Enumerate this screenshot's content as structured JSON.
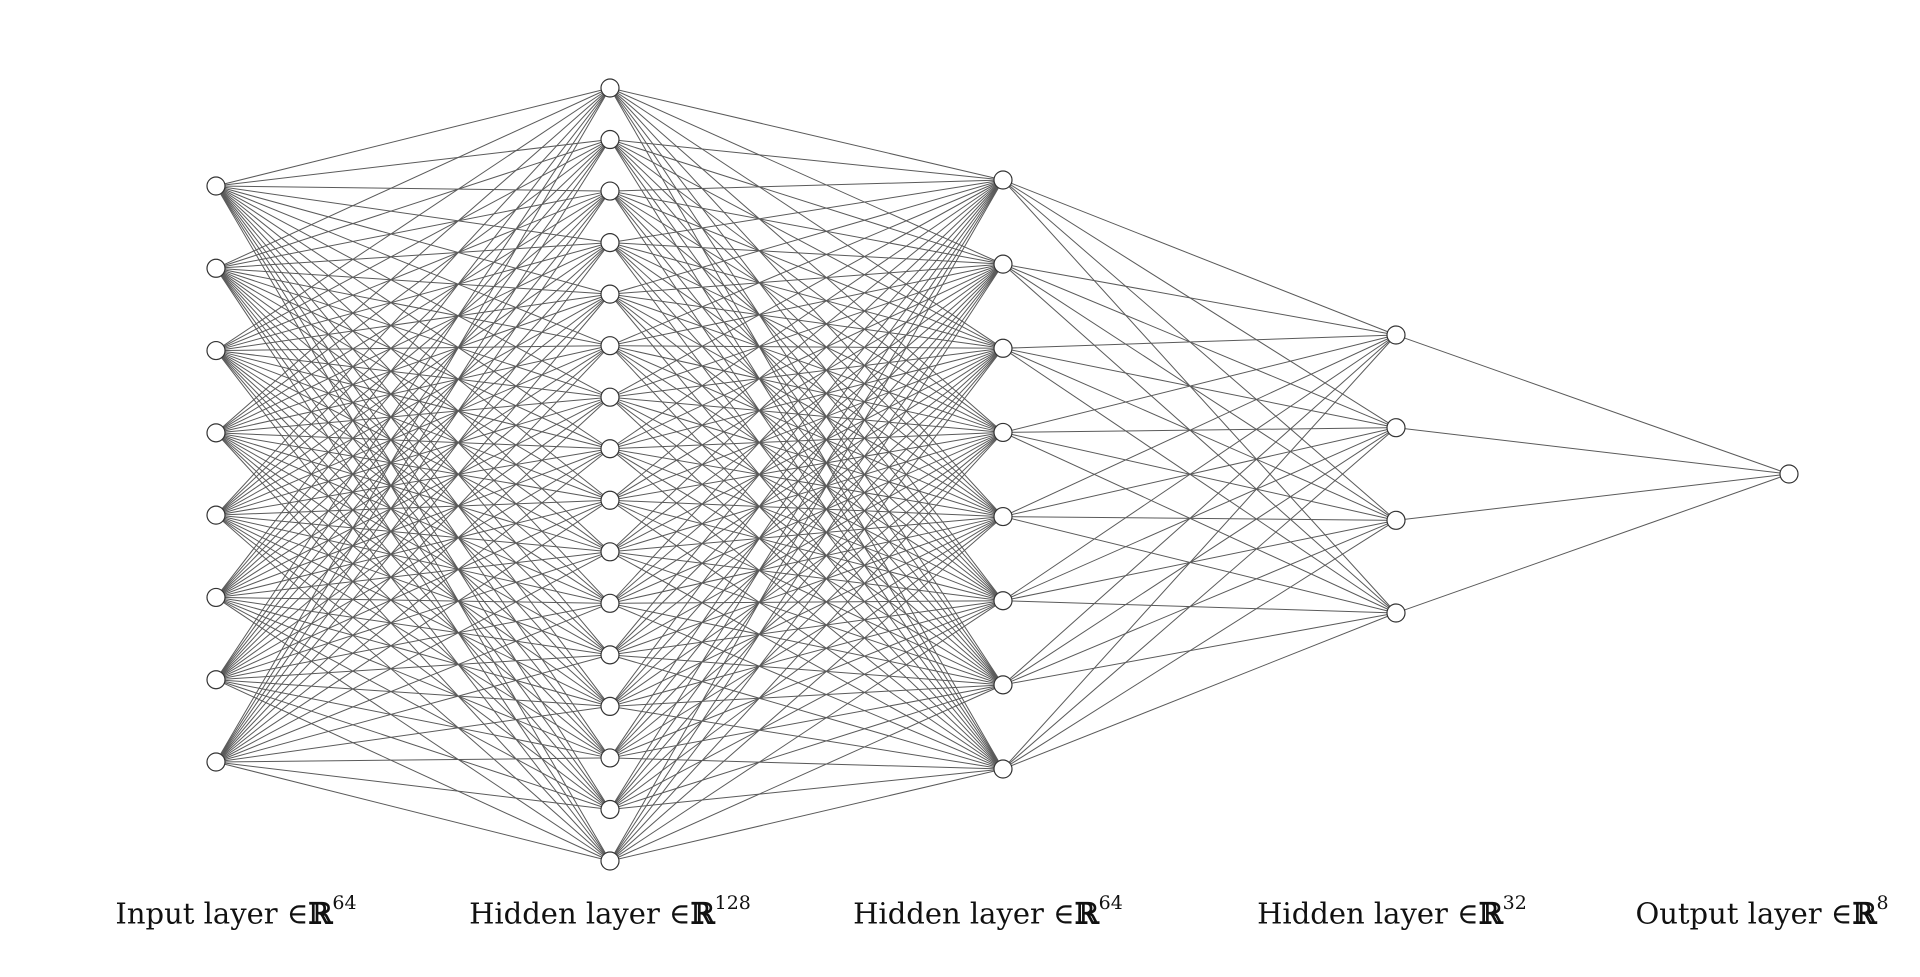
{
  "layers": [
    {
      "nodes": 8,
      "label": "Input layer",
      "set_symbol": "ℝ",
      "dim": "64"
    },
    {
      "nodes": 16,
      "label": "Hidden layer",
      "set_symbol": "ℝ",
      "dim": "128"
    },
    {
      "nodes": 8,
      "label": "Hidden layer",
      "set_symbol": "ℝ",
      "dim": "64"
    },
    {
      "nodes": 4,
      "label": "Hidden layer",
      "set_symbol": "ℝ",
      "dim": "32"
    },
    {
      "nodes": 1,
      "label": "Output layer",
      "set_symbol": "ℝ",
      "dim": "8"
    }
  ],
  "element_of": "∈",
  "colors": {
    "edge": "#5a5a5a",
    "node_stroke": "#333333",
    "node_fill": "#ffffff",
    "background": "#ffffff"
  }
}
